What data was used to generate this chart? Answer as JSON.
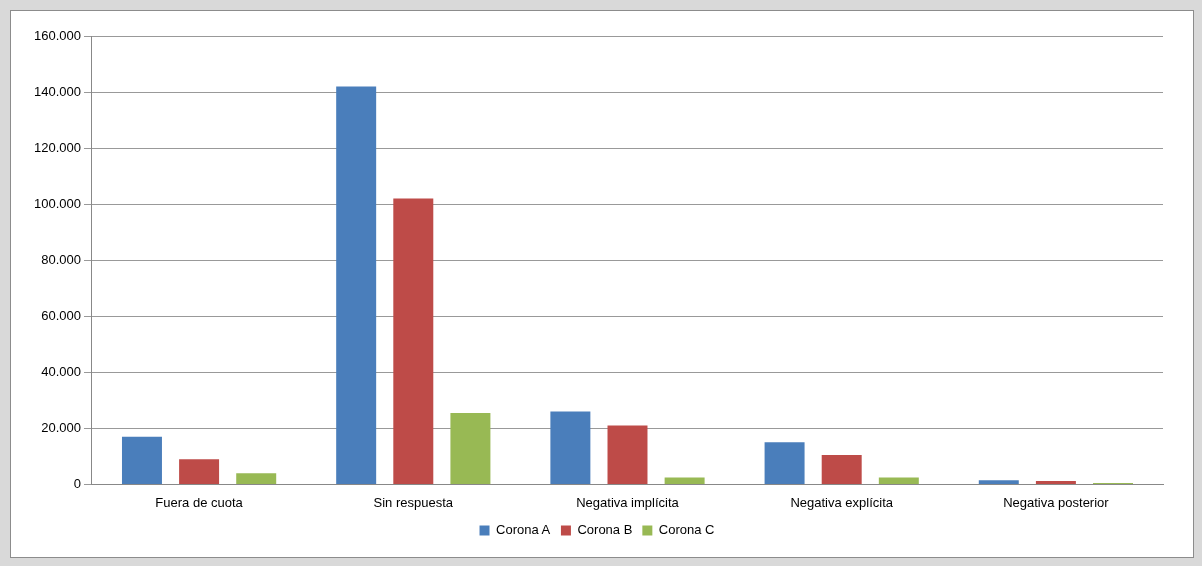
{
  "chart_data": {
    "type": "bar",
    "categories": [
      "Fuera de cuota",
      "Sin respuesta",
      "Negativa implícita",
      "Negativa explícita",
      "Negativa posterior"
    ],
    "series": [
      {
        "name": "Corona A",
        "color": "#4a7ebb",
        "values": [
          17000,
          142000,
          26000,
          15000,
          1500
        ]
      },
      {
        "name": "Corona B",
        "color": "#be4b48",
        "values": [
          9000,
          102000,
          21000,
          10500,
          1200
        ]
      },
      {
        "name": "Corona C",
        "color": "#98b954",
        "values": [
          4000,
          25500,
          2500,
          2500,
          500
        ]
      }
    ],
    "ylim": [
      0,
      160000
    ],
    "yticks": [
      0,
      {
        "value": 20000,
        "label": "20.000"
      },
      {
        "value": 40000,
        "label": "40.000"
      },
      {
        "value": 60000,
        "label": "60.000"
      },
      {
        "value": 80000,
        "label": "80.000"
      },
      {
        "value": 100000,
        "label": "100.000"
      },
      {
        "value": 120000,
        "label": "120.000"
      },
      {
        "value": 140000,
        "label": "140.000"
      },
      {
        "value": 160000,
        "label": "160.000"
      }
    ],
    "grid": "y",
    "legend": "bottom"
  }
}
